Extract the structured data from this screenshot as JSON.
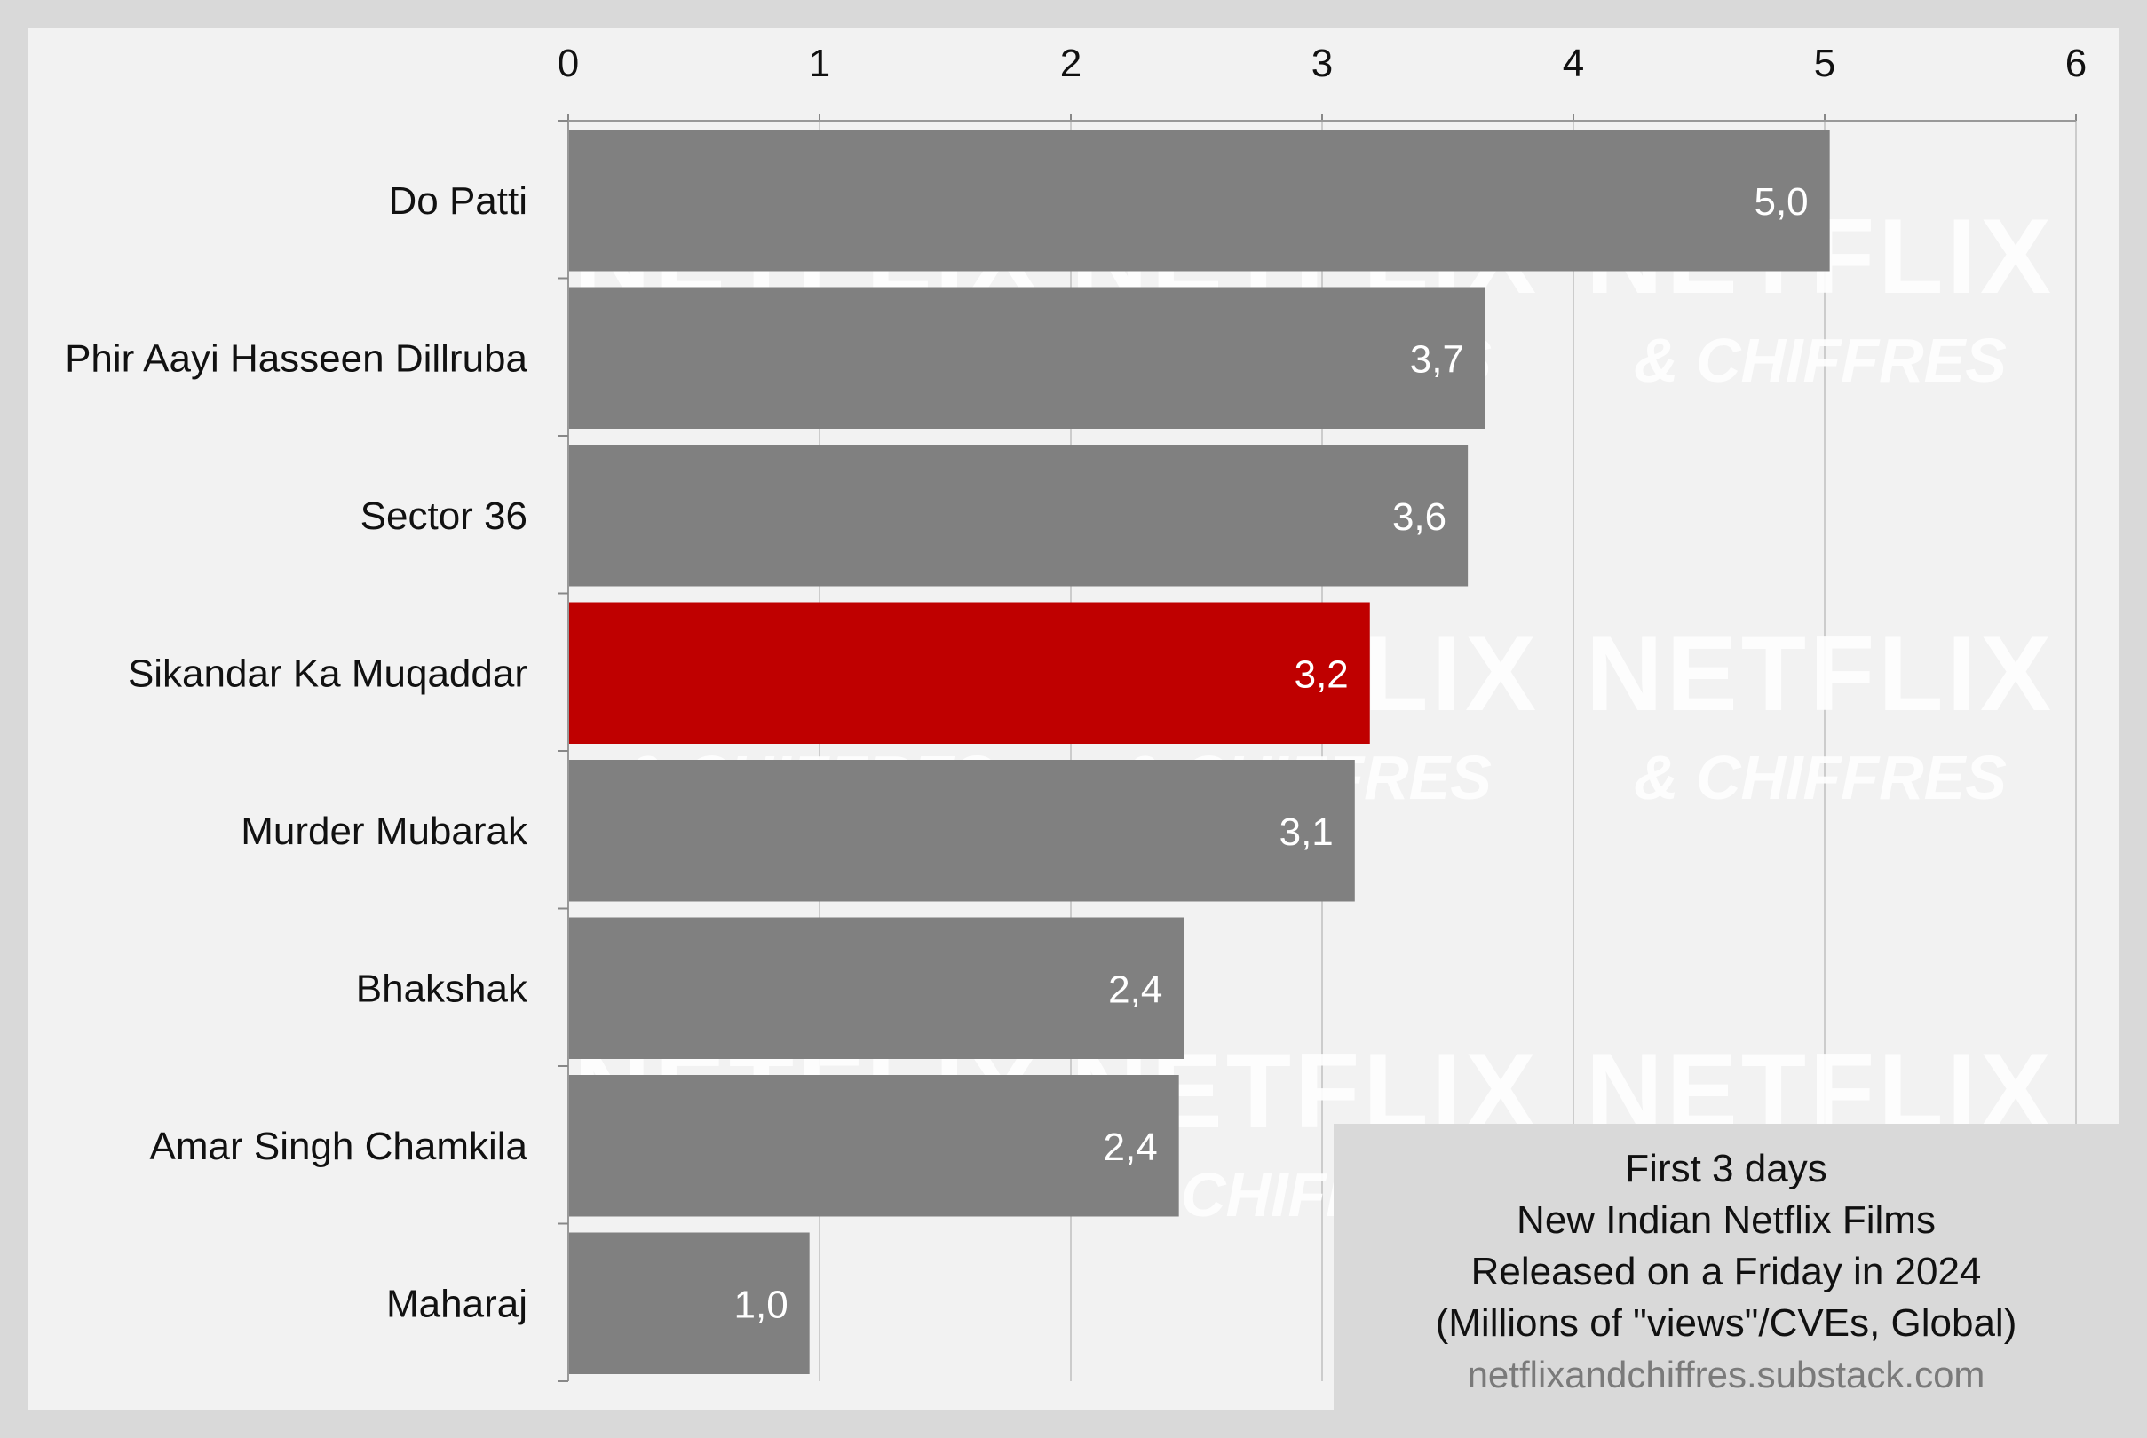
{
  "chart_data": {
    "type": "bar",
    "orientation": "horizontal",
    "categories": [
      "Do Patti",
      "Phir Aayi Hasseen Dillruba",
      "Sector 36",
      "Sikandar Ka Muqaddar",
      "Murder Mubarak",
      "Bhakshak",
      "Amar Singh Chamkila",
      "Maharaj"
    ],
    "values": [
      5.02,
      3.65,
      3.58,
      3.19,
      3.13,
      2.45,
      2.43,
      0.96
    ],
    "data_labels": [
      "5,0",
      "3,7",
      "3,6",
      "3,2",
      "3,1",
      "2,4",
      "2,4",
      "1,0"
    ],
    "highlight_index": 3,
    "xlim": [
      0,
      6
    ],
    "x_ticks": [
      "0",
      "1",
      "2",
      "3",
      "4",
      "5",
      "6"
    ],
    "x_axis_position": "top",
    "grid": true,
    "colors": {
      "bar": "#808080",
      "highlight": "#bf0000",
      "plot_background": "#f2f2f2",
      "page_background": "#d9d9d9",
      "grid": "#cccccc",
      "label_text": "#111111",
      "value_text": "#ffffff",
      "watermark": "#ffffff"
    },
    "legend_lines": [
      "First 3 days",
      "New Indian Netflix Films",
      "Released on a Friday in 2024",
      "(Millions of \"views\"/CVEs, Global)"
    ],
    "source": "netflixandchiffres.substack.com",
    "legend_placement": "bottom-right"
  },
  "watermark": {
    "line1": "NETFLIX",
    "line2": "& CHIFFRES"
  }
}
